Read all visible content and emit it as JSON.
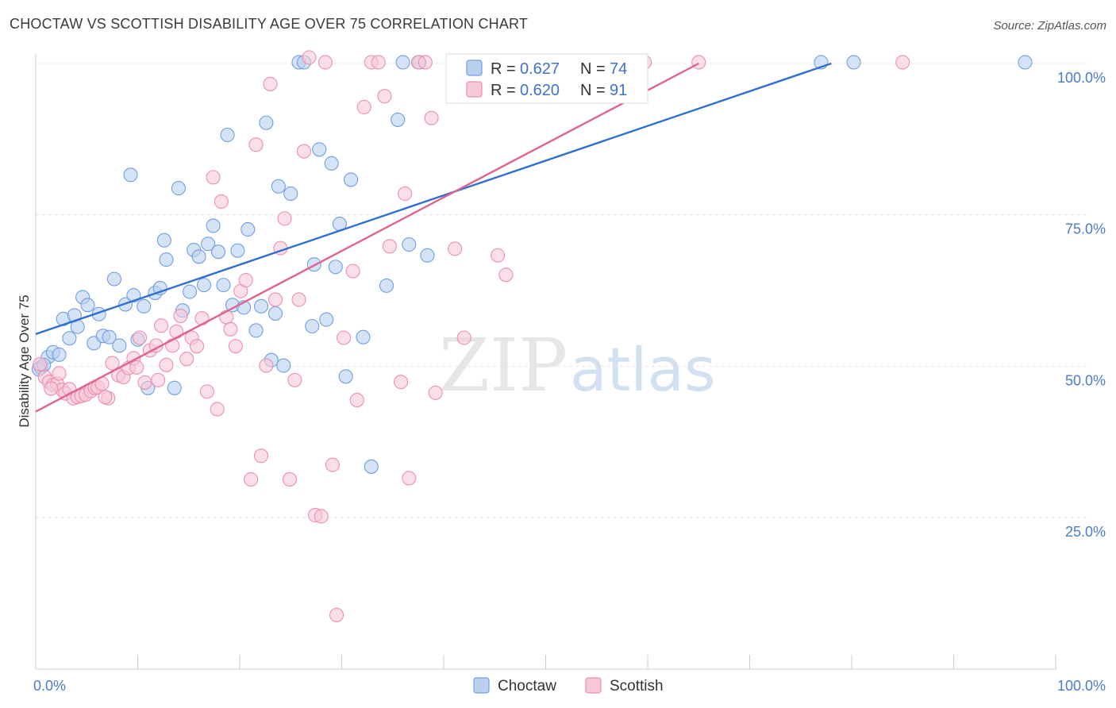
{
  "title": "CHOCTAW VS SCOTTISH DISABILITY AGE OVER 75 CORRELATION CHART",
  "source": "Source: ZipAtlas.com",
  "watermark": {
    "zip": "ZIP",
    "atlas": "atlas"
  },
  "legend": {
    "r_label": "R =",
    "n_label": "N =",
    "rows": [
      {
        "r": "0.627",
        "n": "74"
      },
      {
        "r": "0.620",
        "n": "91"
      }
    ]
  },
  "chart_data": {
    "type": "scatter",
    "ylabel": "Disability Age Over 75",
    "xlabel": "",
    "xlim": [
      0,
      100
    ],
    "ylim": [
      0,
      105
    ],
    "x_tick_labels": [
      "0.0%",
      "100.0%"
    ],
    "y_tick_labels": [
      "25.0%",
      "50.0%",
      "75.0%",
      "100.0%"
    ],
    "y_ticks": [
      25,
      50,
      75,
      100
    ],
    "grid": true,
    "legend_position": "top-center",
    "series": [
      {
        "name": "Choctaw",
        "color": "#6f9fe0",
        "fill": "#b9d0f1",
        "line_color": "#2f6fcf",
        "trend": {
          "x": [
            0,
            78
          ],
          "y": [
            55.3,
            100
          ]
        },
        "points": [
          [
            0.5,
            49.8
          ],
          [
            1.2,
            51.5
          ],
          [
            1.7,
            52.3
          ],
          [
            2.3,
            51.9
          ],
          [
            2.7,
            57.8
          ],
          [
            3.3,
            54.6
          ],
          [
            3.8,
            58.4
          ],
          [
            4.1,
            56.5
          ],
          [
            4.6,
            61.4
          ],
          [
            5.1,
            60.1
          ],
          [
            5.7,
            53.8
          ],
          [
            6.2,
            58.6
          ],
          [
            6.6,
            55.0
          ],
          [
            7.2,
            54.8
          ],
          [
            7.7,
            64.4
          ],
          [
            8.2,
            53.4
          ],
          [
            8.8,
            60.2
          ],
          [
            9.3,
            81.6
          ],
          [
            9.6,
            61.7
          ],
          [
            10.0,
            54.4
          ],
          [
            10.6,
            59.9
          ],
          [
            11.0,
            46.4
          ],
          [
            11.7,
            62.1
          ],
          [
            12.2,
            62.9
          ],
          [
            12.6,
            70.8
          ],
          [
            12.8,
            67.6
          ],
          [
            13.6,
            46.4
          ],
          [
            14.0,
            79.4
          ],
          [
            14.4,
            59.2
          ],
          [
            15.1,
            62.3
          ],
          [
            15.5,
            69.2
          ],
          [
            16.0,
            68.1
          ],
          [
            16.5,
            63.4
          ],
          [
            16.9,
            70.2
          ],
          [
            17.4,
            73.2
          ],
          [
            17.9,
            68.9
          ],
          [
            18.4,
            63.4
          ],
          [
            18.8,
            88.2
          ],
          [
            19.3,
            60.1
          ],
          [
            19.8,
            69.1
          ],
          [
            20.4,
            59.7
          ],
          [
            20.8,
            72.6
          ],
          [
            21.6,
            55.9
          ],
          [
            22.1,
            59.9
          ],
          [
            22.6,
            90.2
          ],
          [
            23.1,
            51.0
          ],
          [
            23.5,
            58.7
          ],
          [
            23.8,
            79.7
          ],
          [
            24.3,
            50.1
          ],
          [
            25.0,
            78.5
          ],
          [
            25.8,
            100.2
          ],
          [
            26.3,
            100.2
          ],
          [
            27.1,
            56.6
          ],
          [
            27.3,
            66.8
          ],
          [
            27.8,
            85.8
          ],
          [
            28.5,
            57.7
          ],
          [
            29.0,
            83.5
          ],
          [
            29.4,
            66.4
          ],
          [
            29.8,
            73.5
          ],
          [
            30.4,
            48.3
          ],
          [
            30.9,
            80.8
          ],
          [
            32.1,
            54.8
          ],
          [
            32.9,
            33.4
          ],
          [
            34.4,
            63.3
          ],
          [
            35.5,
            90.7
          ],
          [
            36.0,
            100.2
          ],
          [
            36.6,
            70.1
          ],
          [
            38.4,
            68.3
          ],
          [
            77.0,
            100.2
          ],
          [
            80.2,
            100.2
          ],
          [
            97.0,
            100.2
          ],
          [
            0.3,
            49.5
          ],
          [
            0.8,
            50.2
          ],
          [
            37.6,
            100.2
          ]
        ]
      },
      {
        "name": "Scottish",
        "color": "#ec8fb0",
        "fill": "#f6c8d8",
        "line_color": "#e0628e",
        "trend": {
          "x": [
            0,
            65
          ],
          "y": [
            42.5,
            100
          ]
        },
        "points": [
          [
            0.4,
            50.3
          ],
          [
            0.9,
            48.2
          ],
          [
            1.3,
            47.4
          ],
          [
            1.7,
            46.9
          ],
          [
            2.1,
            47.1
          ],
          [
            2.6,
            46.1
          ],
          [
            2.9,
            45.5
          ],
          [
            3.3,
            46.2
          ],
          [
            3.7,
            44.7
          ],
          [
            4.1,
            44.9
          ],
          [
            4.5,
            45.1
          ],
          [
            4.9,
            45.3
          ],
          [
            5.4,
            45.9
          ],
          [
            5.8,
            46.4
          ],
          [
            6.1,
            46.5
          ],
          [
            6.5,
            47.1
          ],
          [
            7.1,
            44.7
          ],
          [
            7.5,
            50.5
          ],
          [
            8.1,
            48.5
          ],
          [
            8.6,
            48.2
          ],
          [
            9.1,
            49.7
          ],
          [
            9.6,
            51.3
          ],
          [
            10.2,
            54.7
          ],
          [
            10.7,
            47.3
          ],
          [
            11.2,
            52.6
          ],
          [
            11.8,
            53.4
          ],
          [
            12.3,
            56.7
          ],
          [
            12.8,
            50.2
          ],
          [
            13.4,
            53.4
          ],
          [
            13.8,
            55.7
          ],
          [
            14.2,
            58.3
          ],
          [
            14.8,
            51.2
          ],
          [
            15.3,
            54.7
          ],
          [
            15.8,
            53.3
          ],
          [
            16.3,
            57.9
          ],
          [
            16.8,
            45.8
          ],
          [
            17.4,
            81.2
          ],
          [
            17.8,
            42.9
          ],
          [
            18.2,
            77.2
          ],
          [
            18.7,
            58.1
          ],
          [
            19.1,
            56.1
          ],
          [
            19.6,
            53.3
          ],
          [
            20.1,
            62.4
          ],
          [
            20.6,
            64.2
          ],
          [
            21.1,
            31.3
          ],
          [
            21.6,
            86.6
          ],
          [
            22.1,
            35.2
          ],
          [
            22.6,
            50.1
          ],
          [
            23.0,
            96.6
          ],
          [
            23.5,
            61.0
          ],
          [
            24.0,
            69.5
          ],
          [
            24.4,
            74.4
          ],
          [
            24.9,
            31.3
          ],
          [
            25.4,
            47.7
          ],
          [
            25.8,
            61.0
          ],
          [
            26.3,
            85.5
          ],
          [
            26.8,
            101.0
          ],
          [
            27.4,
            25.4
          ],
          [
            28.0,
            25.2
          ],
          [
            28.4,
            100.2
          ],
          [
            29.1,
            33.7
          ],
          [
            29.5,
            8.9
          ],
          [
            30.2,
            54.7
          ],
          [
            31.1,
            65.7
          ],
          [
            31.5,
            44.4
          ],
          [
            32.2,
            92.8
          ],
          [
            32.9,
            100.2
          ],
          [
            33.6,
            100.2
          ],
          [
            34.2,
            94.6
          ],
          [
            34.7,
            69.8
          ],
          [
            35.8,
            47.4
          ],
          [
            36.2,
            78.5
          ],
          [
            36.6,
            31.5
          ],
          [
            37.5,
            100.2
          ],
          [
            38.2,
            100.2
          ],
          [
            38.8,
            91.0
          ],
          [
            39.2,
            45.6
          ],
          [
            41.1,
            69.4
          ],
          [
            42.0,
            54.7
          ],
          [
            45.3,
            68.3
          ],
          [
            46.1,
            65.1
          ],
          [
            45.8,
            100.2
          ],
          [
            55.0,
            100.2
          ],
          [
            59.7,
            100.2
          ],
          [
            65.0,
            100.2
          ],
          [
            85.0,
            100.2
          ],
          [
            1.5,
            46.3
          ],
          [
            2.3,
            48.8
          ],
          [
            6.8,
            44.9
          ],
          [
            9.9,
            49.8
          ],
          [
            12.0,
            47.7
          ]
        ]
      }
    ]
  }
}
